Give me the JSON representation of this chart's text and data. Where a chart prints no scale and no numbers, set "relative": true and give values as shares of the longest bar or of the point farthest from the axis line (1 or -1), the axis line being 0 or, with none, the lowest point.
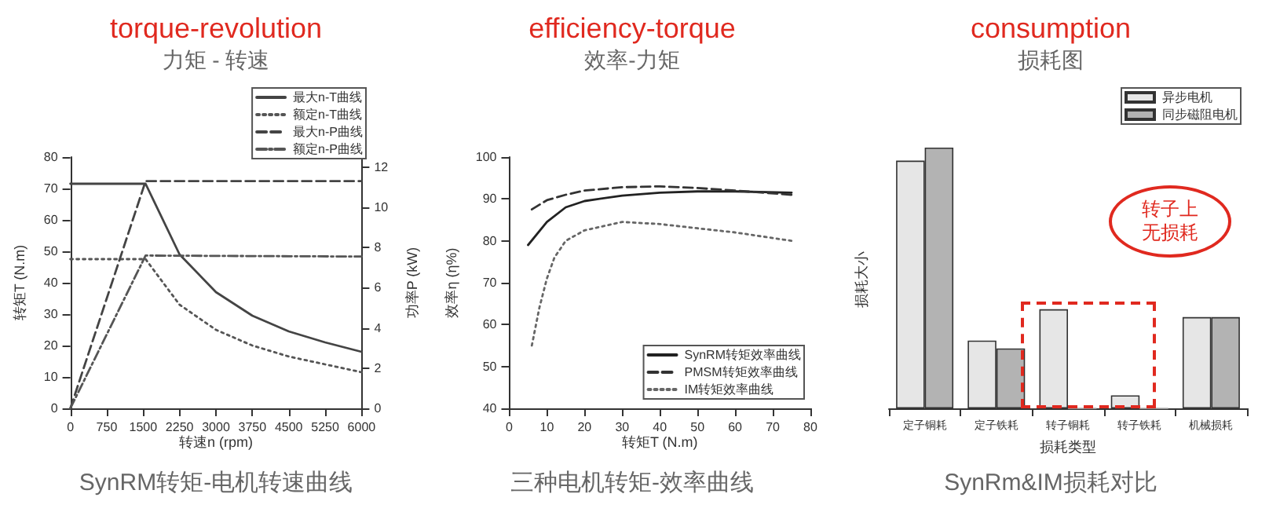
{
  "chart_data": [
    {
      "type": "line",
      "title": "torque-revolution",
      "subtitle": "力矩 - 转速",
      "xlabel": "转速n (rpm)",
      "ylabel": "转矩T (N.m)",
      "y2label": "功率P (kW)",
      "xlim": [
        0,
        6000
      ],
      "xticks": [
        0,
        750,
        1500,
        2250,
        3000,
        3750,
        4500,
        5250,
        6000
      ],
      "ylim": [
        0,
        80
      ],
      "yticks": [
        0,
        10,
        20,
        30,
        40,
        50,
        60,
        70,
        80
      ],
      "y2lim": [
        0,
        12.5
      ],
      "y2ticks": [
        0,
        2,
        4,
        6,
        8,
        10,
        12
      ],
      "legend": "top right",
      "marker": "none",
      "annotations": [
        "SynRM转矩-电机转速曲线"
      ],
      "series": [
        {
          "name": "最大n-T曲线",
          "color": "#444444",
          "line_style": "solid",
          "x": [
            0,
            1550,
            2250,
            3000,
            3750,
            4500,
            5250,
            6000
          ],
          "values": [
            71.5,
            71.5,
            49,
            37,
            29.5,
            24.5,
            21,
            18
          ]
        },
        {
          "name": "额定n-T曲线",
          "color": "#555555",
          "line_style": "dotted",
          "x": [
            0,
            1550,
            2250,
            3000,
            3750,
            4500,
            5250,
            6000
          ],
          "values": [
            47.5,
            47.5,
            33,
            25,
            20,
            16.5,
            14,
            11.5
          ]
        },
        {
          "name": "最大n-P曲线",
          "color": "#444444",
          "line_style": "dashed",
          "axis": "y2",
          "x": [
            0,
            1550,
            6000
          ],
          "values": [
            0,
            11.3,
            11.3
          ]
        },
        {
          "name": "额定n-P曲线",
          "color": "#555555",
          "line_style": "dashdot",
          "axis": "y2",
          "x": [
            0,
            1550,
            6000
          ],
          "values": [
            0,
            7.6,
            7.55
          ]
        }
      ]
    },
    {
      "type": "line",
      "title": "efficiency-torque",
      "subtitle": "效率-力矩",
      "xlabel": "转矩T (N.m)",
      "ylabel": "效率η (η%)",
      "xlim": [
        0,
        80
      ],
      "xticks": [
        0,
        10,
        20,
        30,
        40,
        50,
        60,
        70,
        80
      ],
      "ylim": [
        40,
        100
      ],
      "yticks": [
        40,
        50,
        60,
        70,
        80,
        90,
        100
      ],
      "legend": "bottom right",
      "marker": "none",
      "annotations": [
        "三种电机转矩-效率曲线"
      ],
      "series": [
        {
          "name": "SynRM转矩效率曲线",
          "color": "#222222",
          "line_style": "solid",
          "x": [
            5,
            10,
            15,
            20,
            30,
            40,
            50,
            60,
            75
          ],
          "values": [
            79,
            84.5,
            88,
            89.5,
            90.8,
            91.5,
            91.8,
            91.8,
            91.5
          ]
        },
        {
          "name": "PMSM转矩效率曲线",
          "color": "#333333",
          "line_style": "dashed",
          "x": [
            6,
            10,
            15,
            20,
            30,
            40,
            50,
            60,
            75
          ],
          "values": [
            87.5,
            89.7,
            91,
            92,
            92.8,
            93,
            92.6,
            92,
            91
          ]
        },
        {
          "name": "IM转矩效率曲线",
          "color": "#666666",
          "line_style": "dotted",
          "x": [
            6,
            8,
            10,
            12,
            15,
            20,
            30,
            40,
            50,
            60,
            75
          ],
          "values": [
            55,
            64,
            71,
            76,
            80,
            82.5,
            84.5,
            84,
            83,
            82,
            80
          ]
        }
      ]
    },
    {
      "type": "bar",
      "title": "consumption",
      "subtitle": "损耗图",
      "xlabel": "损耗类型",
      "ylabel": "损耗大小",
      "relative": true,
      "legend": "top right",
      "categories": [
        "定子铜耗",
        "定子铁耗",
        "转子铜耗",
        "转子铁耗",
        "机械损耗"
      ],
      "annotations": [
        "转子上无损耗",
        "SynRm&IM损耗对比"
      ],
      "series": [
        {
          "name": "异步电机",
          "color": "#e6e6e6",
          "values": [
            0.95,
            0.26,
            0.38,
            0.05,
            0.35
          ]
        },
        {
          "name": "同步磁阻电机",
          "color": "#b3b3b3",
          "values": [
            1,
            0.23,
            0,
            0,
            0.35
          ]
        }
      ]
    }
  ]
}
